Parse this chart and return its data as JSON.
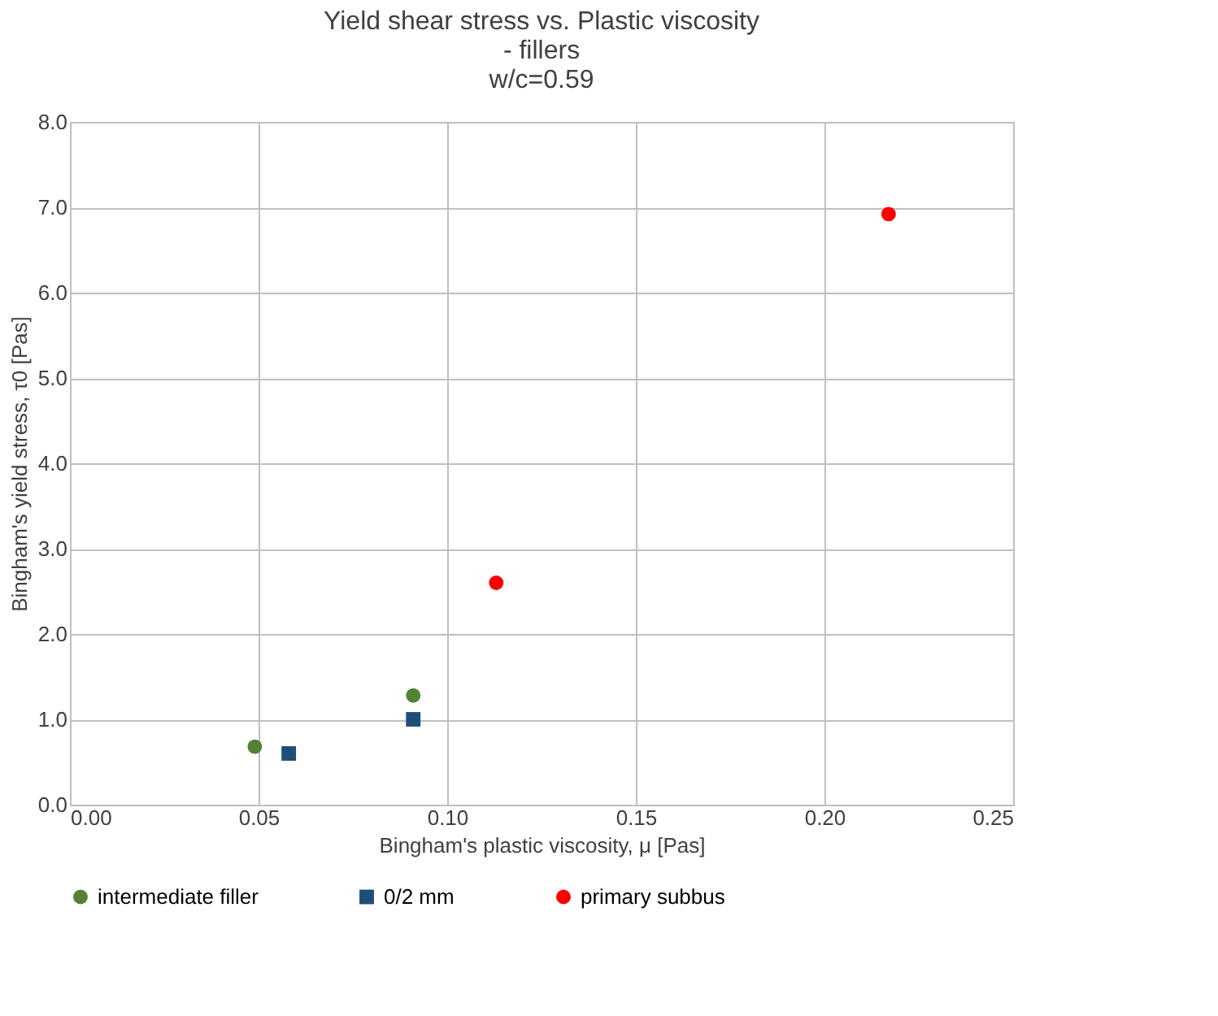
{
  "chart_data": {
    "type": "scatter",
    "title": "Yield shear stress vs. Plastic viscosity\n- fillers\nw/c=0.59",
    "xlabel": "Bingham's plastic viscosity, μ [Pas]",
    "ylabel": "Bingham's yield stress, τ0 [Pas]",
    "xlim": [
      0,
      0.25
    ],
    "xticks": [
      {
        "value": 0,
        "label": "0.00"
      },
      {
        "value": 0.05,
        "label": "0.05"
      },
      {
        "value": 0.1,
        "label": "0.10"
      },
      {
        "value": 0.15,
        "label": "0.15"
      },
      {
        "value": 0.2,
        "label": "0.20"
      },
      {
        "value": 0.25,
        "label": "0.25"
      }
    ],
    "ylim": [
      0,
      8
    ],
    "yticks": [
      {
        "value": 0,
        "label": "0.0"
      },
      {
        "value": 1,
        "label": "1.0"
      },
      {
        "value": 2,
        "label": "2.0"
      },
      {
        "value": 3,
        "label": "3.0"
      },
      {
        "value": 4,
        "label": "4.0"
      },
      {
        "value": 5,
        "label": "5.0"
      },
      {
        "value": 6,
        "label": "6.0"
      },
      {
        "value": 7,
        "label": "7.0"
      },
      {
        "value": 8,
        "label": "8.0"
      }
    ],
    "grid": true,
    "legend": "bottom",
    "series": [
      {
        "name": "intermediate filler",
        "color": "#548235",
        "marker": "circle",
        "x": [
          0.049,
          0.091
        ],
        "values": [
          0.68,
          1.28
        ]
      },
      {
        "name": "0/2 mm",
        "color": "#1f4e79",
        "marker": "square",
        "x": [
          0.058,
          0.091
        ],
        "values": [
          0.6,
          1.0
        ]
      },
      {
        "name": "primary subbus",
        "color": "#ff0000",
        "marker": "circle",
        "x": [
          0.113,
          0.217
        ],
        "values": [
          2.6,
          6.92
        ]
      }
    ]
  }
}
